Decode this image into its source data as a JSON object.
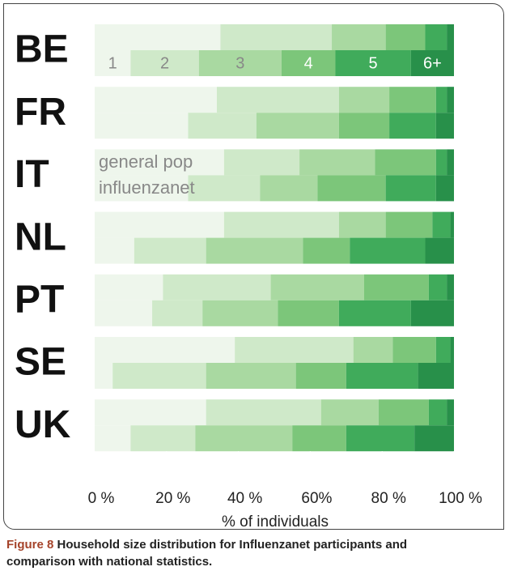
{
  "chart_data": {
    "type": "bar",
    "orientation": "horizontal",
    "stacked": true,
    "categories": [
      "BE",
      "FR",
      "IT",
      "NL",
      "PT",
      "SE",
      "UK"
    ],
    "bar_labels": [
      "general pop",
      "influenzanet"
    ],
    "series": [
      {
        "name": "1",
        "color": "#eef6ec",
        "values": [
          [
            35,
            10
          ],
          [
            34,
            26
          ],
          [
            36,
            26
          ],
          [
            36,
            11
          ],
          [
            19,
            16
          ],
          [
            39,
            5
          ],
          [
            31,
            10
          ]
        ]
      },
      {
        "name": "2",
        "color": "#cfe9c9",
        "values": [
          [
            31,
            19
          ],
          [
            34,
            19
          ],
          [
            21,
            20
          ],
          [
            32,
            20
          ],
          [
            30,
            14
          ],
          [
            33,
            26
          ],
          [
            32,
            18
          ]
        ]
      },
      {
        "name": "3",
        "color": "#a9d9a1",
        "values": [
          [
            15,
            23
          ],
          [
            14,
            23
          ],
          [
            21,
            16
          ],
          [
            13,
            27
          ],
          [
            26,
            21
          ],
          [
            11,
            25
          ],
          [
            16,
            27
          ]
        ]
      },
      {
        "name": "4",
        "color": "#7cc67a",
        "values": [
          [
            11,
            15
          ],
          [
            13,
            14
          ],
          [
            17,
            19
          ],
          [
            13,
            13
          ],
          [
            18,
            17
          ],
          [
            12,
            14
          ],
          [
            14,
            15
          ]
        ]
      },
      {
        "name": "5",
        "color": "#40ab5b",
        "values": [
          [
            6,
            21
          ],
          [
            3,
            13
          ],
          [
            3,
            14
          ],
          [
            5,
            21
          ],
          [
            5,
            20
          ],
          [
            4,
            20
          ],
          [
            5,
            19
          ]
        ]
      },
      {
        "name": "6+",
        "color": "#28904a",
        "values": [
          [
            2,
            12
          ],
          [
            2,
            5
          ],
          [
            2,
            5
          ],
          [
            1,
            8
          ],
          [
            2,
            12
          ],
          [
            1,
            10
          ],
          [
            2,
            11
          ]
        ]
      }
    ],
    "xlim": [
      0,
      100
    ],
    "xticks": [
      {
        "value": 0,
        "label": "0 %"
      },
      {
        "value": 20,
        "label": "20 %"
      },
      {
        "value": 40,
        "label": "40 %"
      },
      {
        "value": 60,
        "label": "60%"
      },
      {
        "value": 80,
        "label": "80 %"
      },
      {
        "value": 100,
        "label": "100 %"
      }
    ],
    "xlabel": "% of individuals",
    "caption_label": "Figure 8",
    "caption": "Household size distribution for Influenzanet participants and comparison with national statistics."
  }
}
